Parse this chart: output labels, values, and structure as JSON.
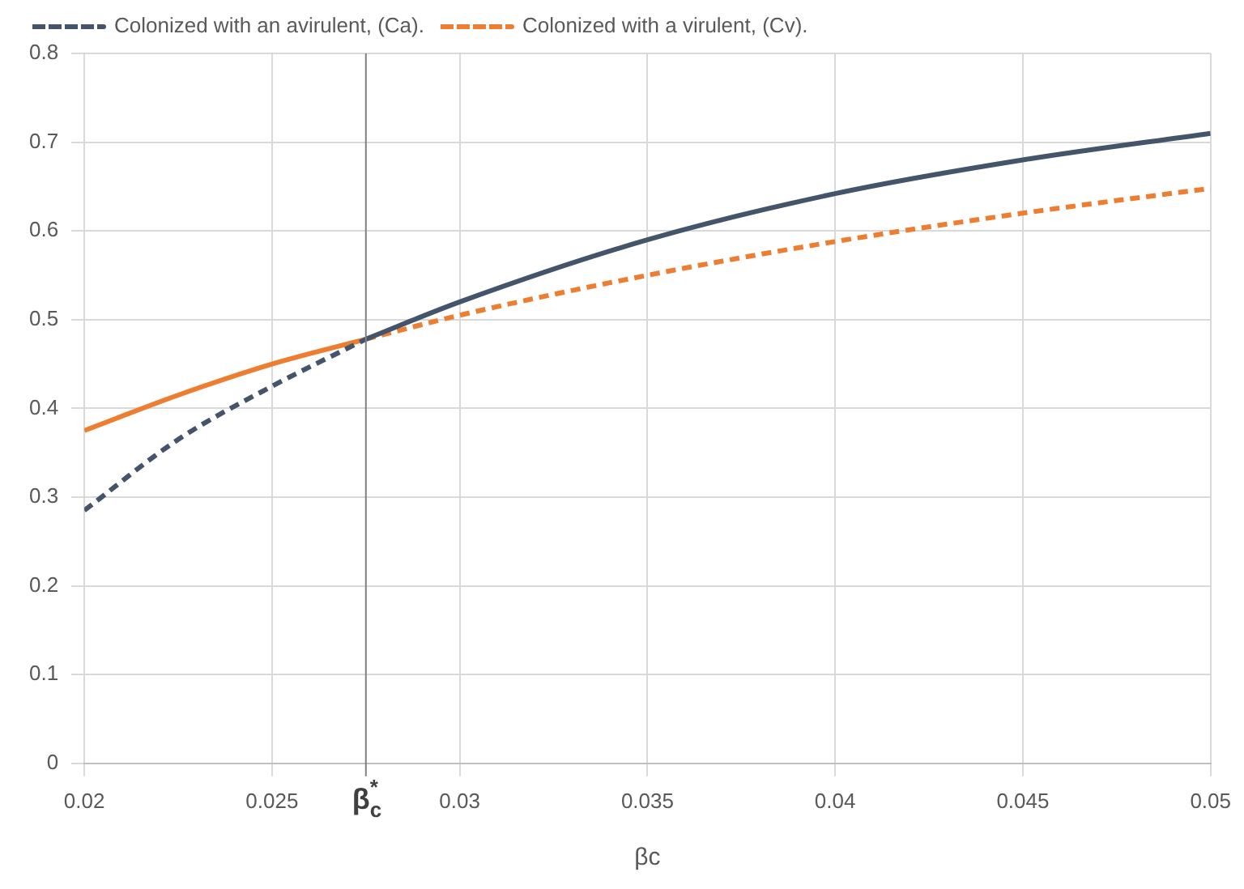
{
  "chart_data": {
    "type": "line",
    "xlabel": "βc",
    "legend": "top left",
    "grid": true,
    "xlim": [
      0.02,
      0.05
    ],
    "xticks": [
      0.02,
      0.025,
      0.03,
      0.035,
      0.04,
      0.045,
      0.05
    ],
    "ylim": [
      0,
      0.8
    ],
    "yticks": [
      0,
      0.1,
      0.2,
      0.3,
      0.4,
      0.5,
      0.6,
      0.7,
      0.8
    ],
    "series": [
      {
        "name": "Colonized with an avirulent, (Ca).",
        "color": "#44546a",
        "line_style": "dashed",
        "x": [
          0.02,
          0.0225,
          0.025,
          0.0275
        ],
        "values": [
          0.285,
          0.365,
          0.425,
          0.478
        ]
      },
      {
        "color": "#44546a",
        "line_style": "solid",
        "x": [
          0.0275,
          0.03,
          0.035,
          0.04,
          0.045,
          0.05
        ],
        "values": [
          0.478,
          0.52,
          0.59,
          0.642,
          0.68,
          0.71
        ]
      },
      {
        "name": "Colonized with a virulent, (Cv).",
        "color": "#ed7d31",
        "line_style": "dashed",
        "x": [
          0.0275,
          0.03,
          0.035,
          0.04,
          0.045,
          0.05
        ],
        "values": [
          0.478,
          0.505,
          0.55,
          0.588,
          0.62,
          0.648
        ]
      },
      {
        "color": "#ed7d31",
        "line_style": "solid",
        "x": [
          0.02,
          0.0225,
          0.025,
          0.0275
        ],
        "values": [
          0.375,
          0.415,
          0.45,
          0.478
        ]
      }
    ],
    "ref_lines": [
      {
        "axis": "x",
        "value": 0.0275,
        "label": "β$^{*}$$_{c}$",
        "color": "#808080"
      }
    ]
  }
}
